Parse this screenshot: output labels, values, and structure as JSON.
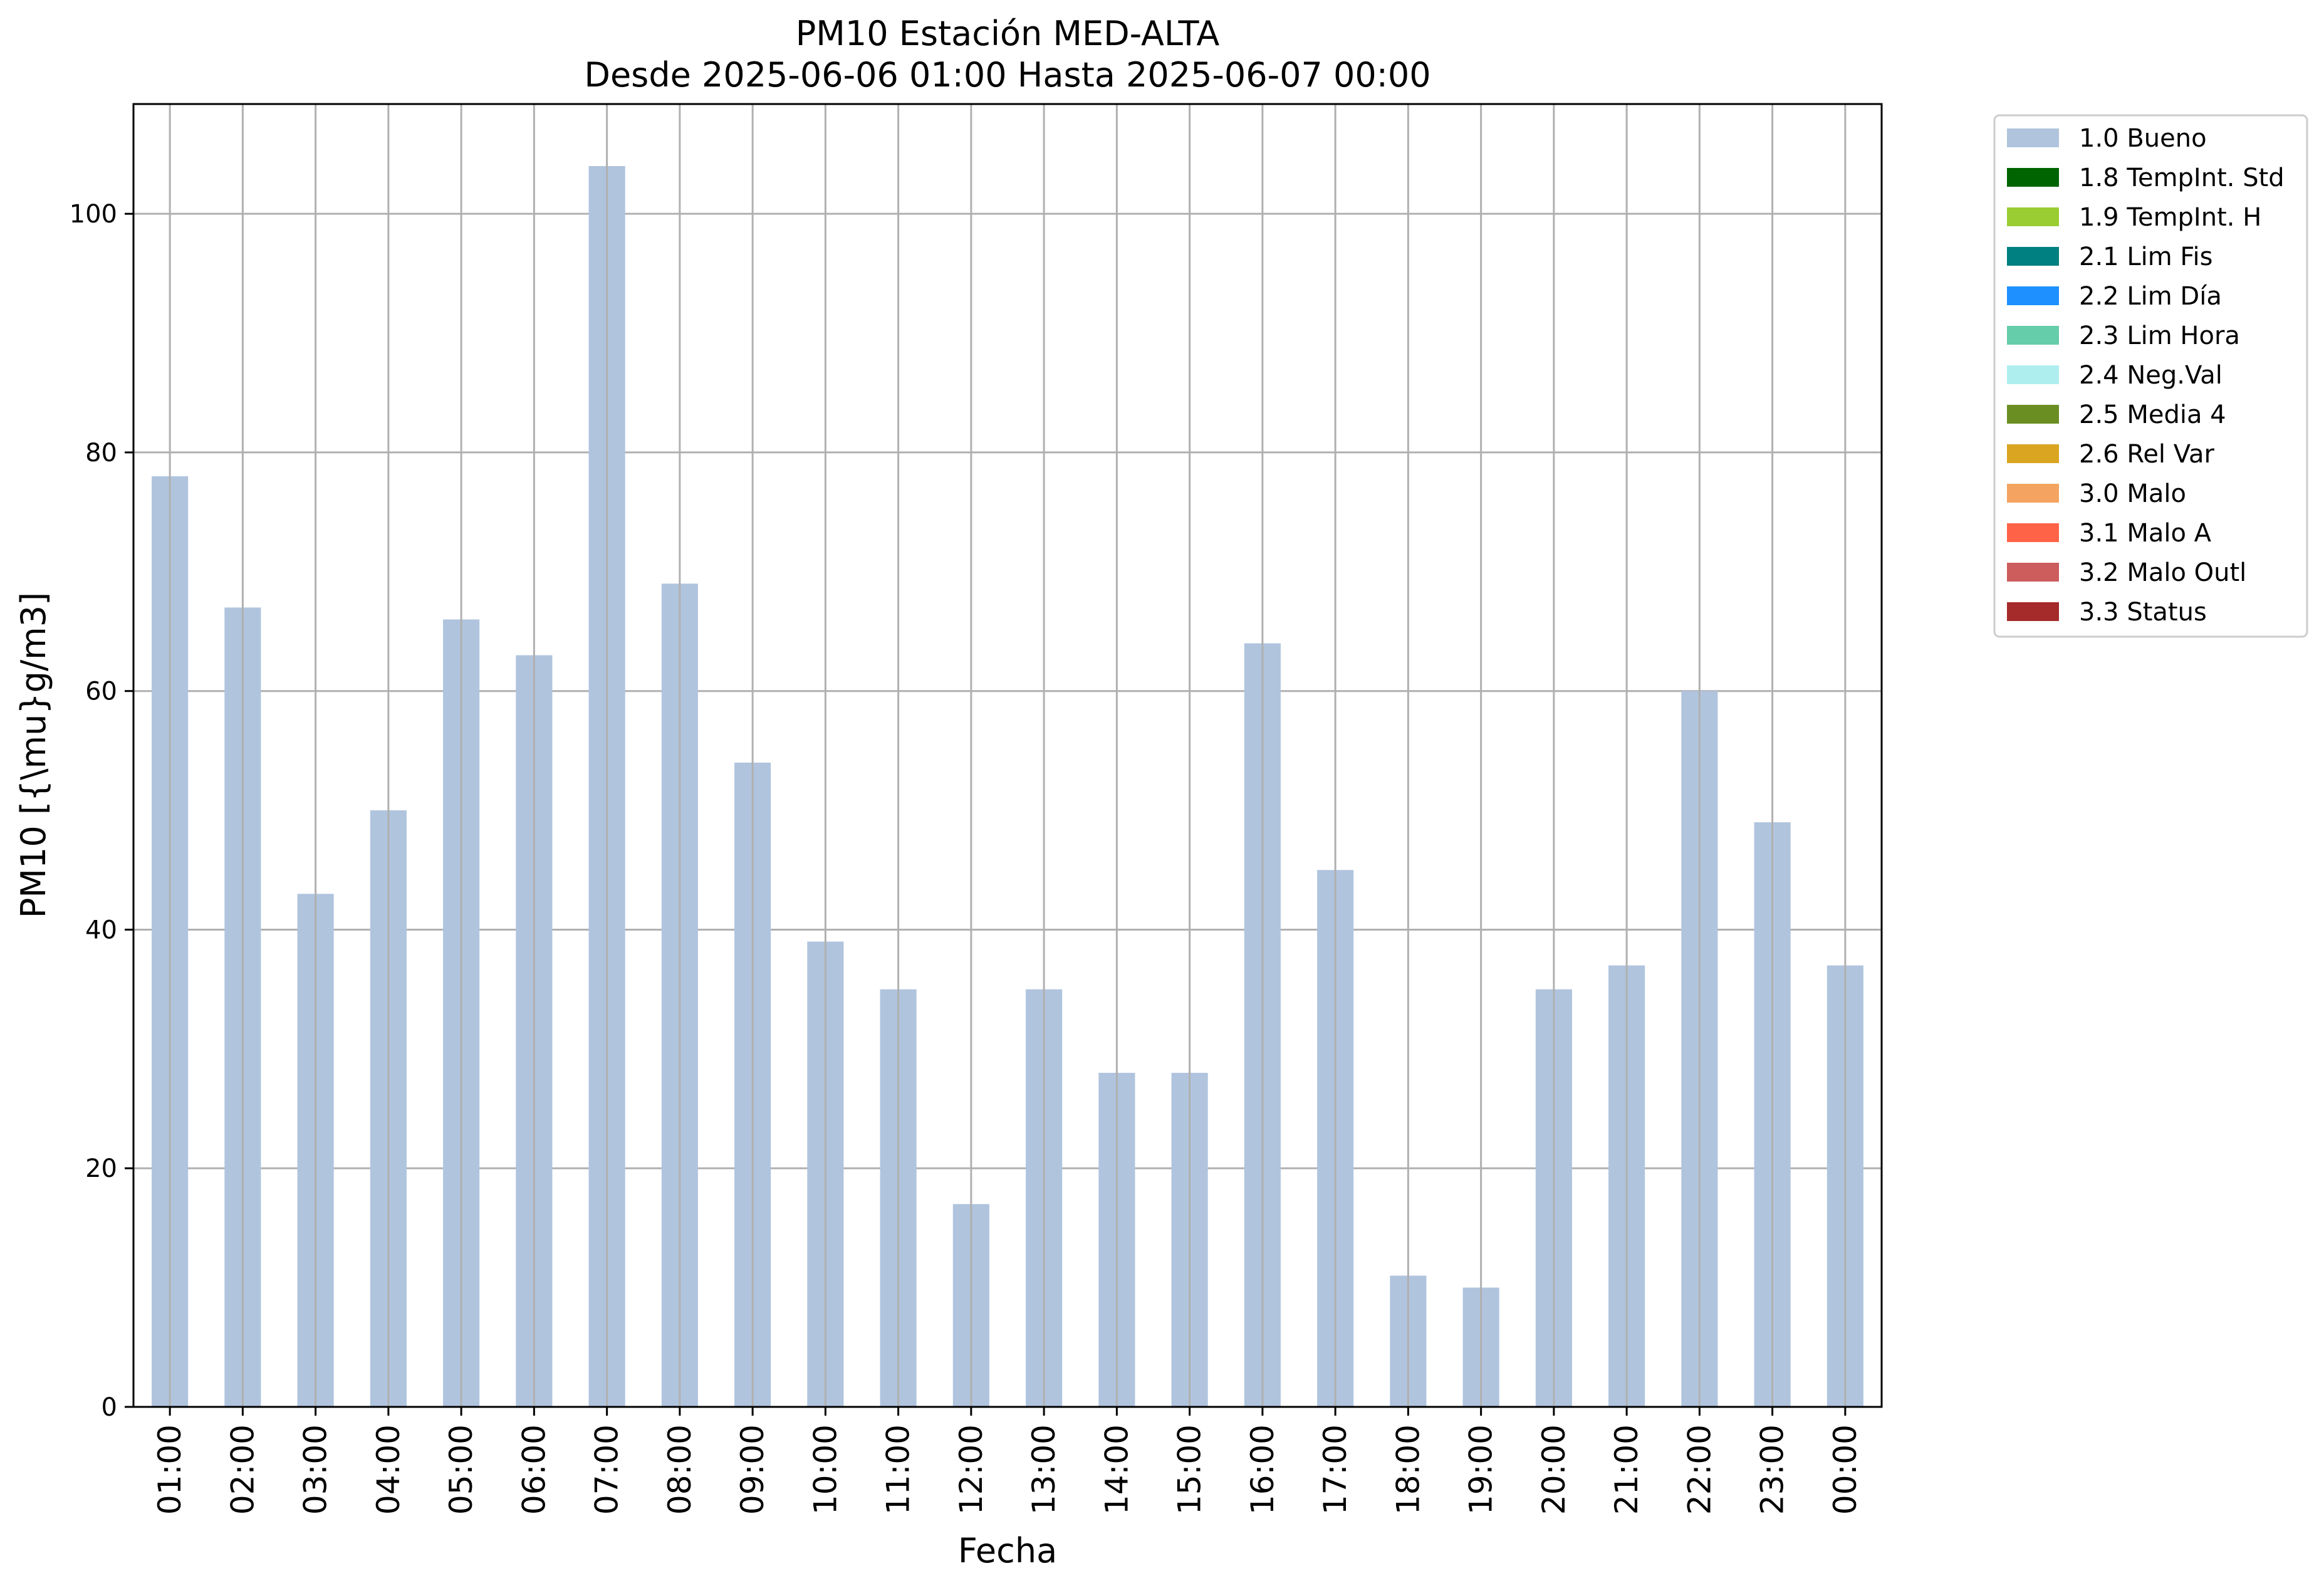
{
  "chart_data": {
    "type": "bar",
    "title": "PM10 Estación MED-ALTA",
    "subtitle": "Desde 2025-06-06 01:00 Hasta 2025-06-07 00:00",
    "xlabel": "Fecha",
    "ylabel": "PM10 [{\\mu}g/m3]",
    "ylim": [
      0,
      109.2
    ],
    "yticks": [
      0,
      20,
      40,
      60,
      80,
      100
    ],
    "grid": true,
    "legend_position": "outside-top-right",
    "categories": [
      "01:00",
      "02:00",
      "03:00",
      "04:00",
      "05:00",
      "06:00",
      "07:00",
      "08:00",
      "09:00",
      "10:00",
      "11:00",
      "12:00",
      "13:00",
      "14:00",
      "15:00",
      "16:00",
      "17:00",
      "18:00",
      "19:00",
      "20:00",
      "21:00",
      "22:00",
      "23:00",
      "00:00"
    ],
    "series": [
      {
        "name": "1.0 Bueno",
        "color": "#b0c4de",
        "values": [
          78,
          67,
          43,
          50,
          66,
          63,
          104,
          69,
          54,
          39,
          35,
          17,
          35,
          28,
          28,
          64,
          45,
          11,
          10,
          35,
          37,
          60,
          49,
          37
        ]
      }
    ],
    "legend": [
      {
        "label": "1.0 Bueno",
        "color": "#b0c4de"
      },
      {
        "label": "1.8 TempInt. Std",
        "color": "#006400"
      },
      {
        "label": "1.9 TempInt. H",
        "color": "#9acd32"
      },
      {
        "label": "2.1 Lim Fis",
        "color": "#008080"
      },
      {
        "label": "2.2 Lim Día",
        "color": "#1e90ff"
      },
      {
        "label": "2.3 Lim Hora",
        "color": "#66cdaa"
      },
      {
        "label": "2.4 Neg.Val",
        "color": "#afeeee"
      },
      {
        "label": "2.5 Media 4",
        "color": "#6b8e23"
      },
      {
        "label": "2.6 Rel Var",
        "color": "#daa520"
      },
      {
        "label": "3.0 Malo",
        "color": "#f4a460"
      },
      {
        "label": "3.1 Malo A",
        "color": "#ff6347"
      },
      {
        "label": "3.2 Malo Outl",
        "color": "#cd5c5c"
      },
      {
        "label": "3.3 Status",
        "color": "#a52a2a"
      }
    ]
  }
}
